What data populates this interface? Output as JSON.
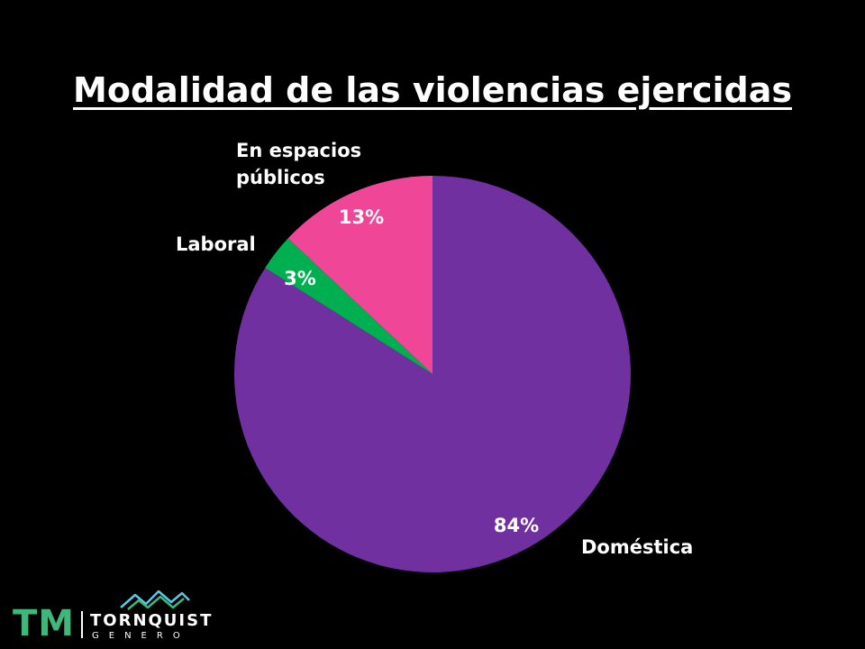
{
  "chart_data": {
    "type": "pie",
    "title": "Modalidad de las violencias ejercidas",
    "slices": [
      {
        "label": "Doméstica",
        "value": 84,
        "value_label": "84%",
        "color": "#7030a0"
      },
      {
        "label": "Laboral",
        "value": 3,
        "value_label": "3%",
        "color": "#00b050"
      },
      {
        "label": "En espacios públicos",
        "value": 13,
        "value_label": "13%",
        "color": "#ef4698"
      }
    ],
    "legend": "none",
    "background": "#000000"
  },
  "logo": {
    "mark": "TM",
    "name": "TORNQUIST",
    "sub": "GENERO",
    "mark_color": "#3fb67a",
    "icon": "mountains-icon"
  }
}
